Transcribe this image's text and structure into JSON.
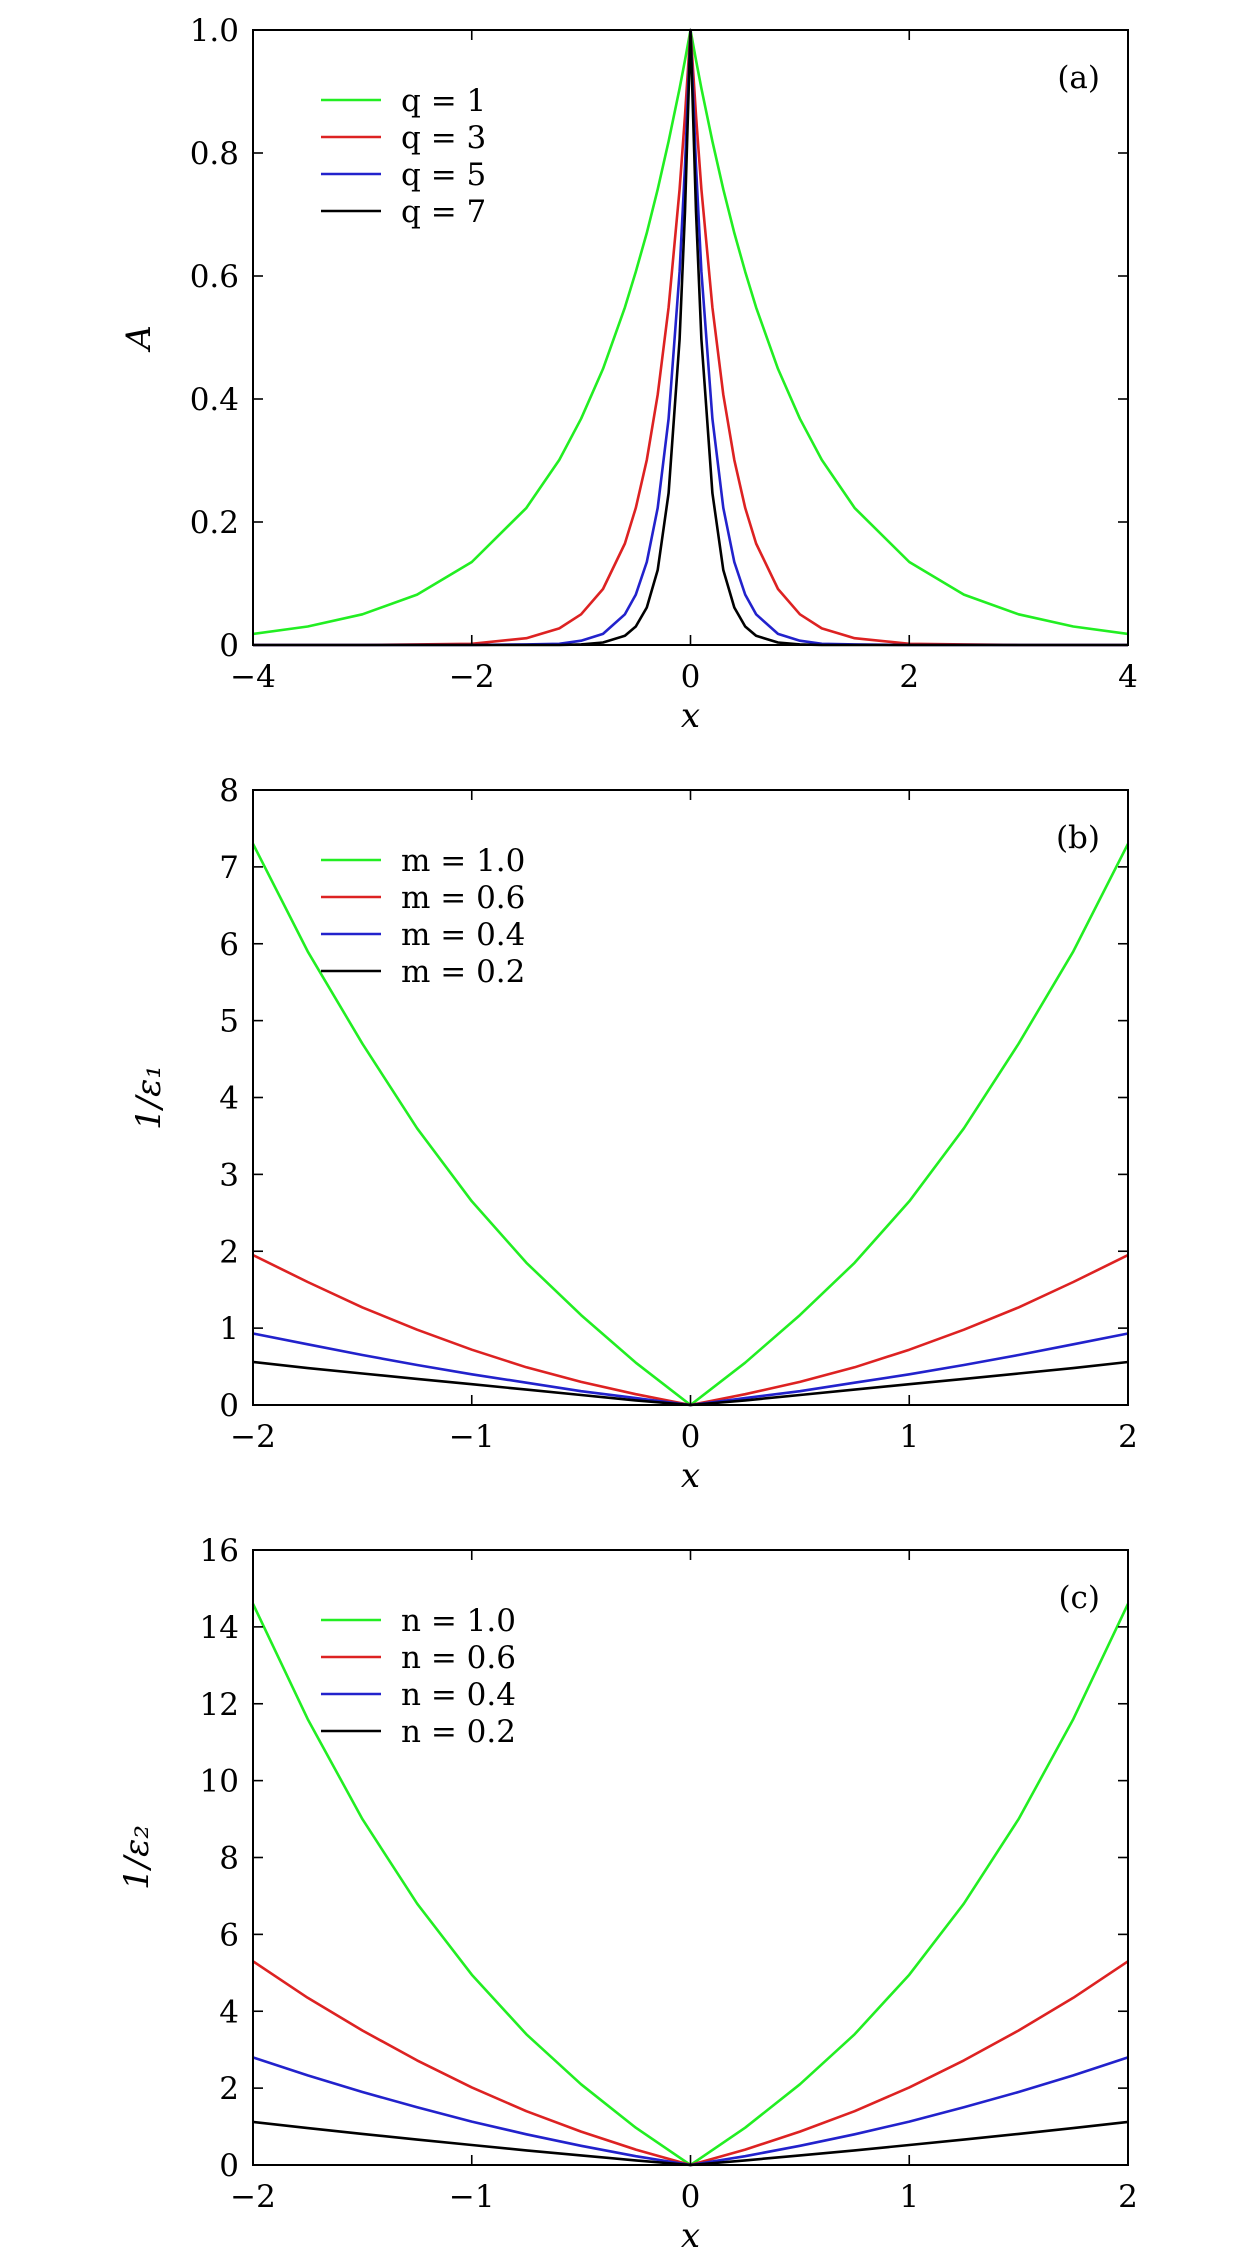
{
  "chart_data": [
    {
      "type": "line",
      "panel_label": "(a)",
      "xlabel": "x",
      "ylabel": "A",
      "xlim": [
        -4,
        4
      ],
      "ylim": [
        0,
        1.0
      ],
      "xticks": [
        -4,
        -2,
        0,
        2,
        4
      ],
      "xtick_labels": [
        "−4",
        "−2",
        "0",
        "2",
        "4"
      ],
      "yticks": [
        0,
        0.2,
        0.4,
        0.6,
        0.8,
        1.0
      ],
      "ytick_labels": [
        "0",
        "0.2",
        "0.4",
        "0.6",
        "0.8",
        "1.0"
      ],
      "legend_position": "top-left",
      "x": [
        -4,
        -3.5,
        -3,
        -2.5,
        -2,
        -1.5,
        -1.2,
        -1,
        -0.8,
        -0.6,
        -0.5,
        -0.4,
        -0.3,
        -0.2,
        -0.1,
        -0.05,
        0,
        0.05,
        0.1,
        0.2,
        0.3,
        0.4,
        0.5,
        0.6,
        0.8,
        1,
        1.2,
        1.5,
        2,
        2.5,
        3,
        3.5,
        4
      ],
      "series": [
        {
          "name": "q = 1",
          "color": "#22ee22",
          "values": [
            0.018,
            0.03,
            0.05,
            0.082,
            0.135,
            0.223,
            0.301,
            0.368,
            0.449,
            0.549,
            0.607,
            0.67,
            0.741,
            0.819,
            0.905,
            0.951,
            1.0,
            0.951,
            0.905,
            0.819,
            0.741,
            0.67,
            0.607,
            0.549,
            0.449,
            0.368,
            0.301,
            0.223,
            0.135,
            0.082,
            0.05,
            0.03,
            0.018
          ]
        },
        {
          "name": "q = 3",
          "color": "#dd2222",
          "values": [
            0.0,
            0.0,
            0.0,
            0.001,
            0.002,
            0.011,
            0.027,
            0.05,
            0.091,
            0.165,
            0.223,
            0.301,
            0.407,
            0.549,
            0.741,
            0.861,
            1.0,
            0.861,
            0.741,
            0.549,
            0.407,
            0.301,
            0.223,
            0.165,
            0.091,
            0.05,
            0.027,
            0.011,
            0.002,
            0.001,
            0.0,
            0.0,
            0.0
          ]
        },
        {
          "name": "q = 5",
          "color": "#2222cc",
          "values": [
            0.0,
            0.0,
            0.0,
            0.0,
            0.0,
            0.001,
            0.002,
            0.007,
            0.018,
            0.05,
            0.082,
            0.135,
            0.223,
            0.368,
            0.607,
            0.779,
            1.0,
            0.779,
            0.607,
            0.368,
            0.223,
            0.135,
            0.082,
            0.05,
            0.018,
            0.007,
            0.002,
            0.001,
            0.0,
            0.0,
            0.0,
            0.0,
            0.0
          ]
        },
        {
          "name": "q = 7",
          "color": "#000000",
          "values": [
            0.0,
            0.0,
            0.0,
            0.0,
            0.0,
            0.0,
            0.0,
            0.001,
            0.004,
            0.015,
            0.03,
            0.061,
            0.122,
            0.247,
            0.497,
            0.705,
            1.0,
            0.705,
            0.497,
            0.247,
            0.122,
            0.061,
            0.03,
            0.015,
            0.004,
            0.001,
            0.0,
            0.0,
            0.0,
            0.0,
            0.0,
            0.0,
            0.0
          ]
        }
      ]
    },
    {
      "type": "line",
      "panel_label": "(b)",
      "xlabel": "x",
      "ylabel": "1/ε₁",
      "xlim": [
        -2,
        2
      ],
      "ylim": [
        0,
        8
      ],
      "xticks": [
        -2,
        -1,
        0,
        1,
        2
      ],
      "xtick_labels": [
        "−2",
        "−1",
        "0",
        "1",
        "2"
      ],
      "yticks": [
        0,
        1,
        2,
        3,
        4,
        5,
        6,
        7,
        8
      ],
      "ytick_labels": [
        "0",
        "1",
        "2",
        "3",
        "4",
        "5",
        "6",
        "7",
        "8"
      ],
      "legend_position": "top-left",
      "x": [
        -2,
        -1.75,
        -1.5,
        -1.25,
        -1,
        -0.75,
        -0.5,
        -0.25,
        0,
        0.25,
        0.5,
        0.75,
        1,
        1.25,
        1.5,
        1.75,
        2
      ],
      "series": [
        {
          "name": "m = 1.0",
          "color": "#22ee22",
          "values": [
            7.3,
            5.9,
            4.7,
            3.6,
            2.65,
            1.85,
            1.17,
            0.55,
            0.0,
            0.55,
            1.17,
            1.85,
            2.65,
            3.6,
            4.7,
            5.9,
            7.3
          ]
        },
        {
          "name": "m = 0.6",
          "color": "#dd2222",
          "values": [
            1.95,
            1.6,
            1.27,
            0.98,
            0.72,
            0.49,
            0.3,
            0.14,
            0.0,
            0.14,
            0.3,
            0.49,
            0.72,
            0.98,
            1.27,
            1.6,
            1.95
          ]
        },
        {
          "name": "m = 0.4",
          "color": "#2222cc",
          "values": [
            0.93,
            0.79,
            0.65,
            0.52,
            0.4,
            0.29,
            0.18,
            0.09,
            0.0,
            0.09,
            0.18,
            0.29,
            0.4,
            0.52,
            0.65,
            0.79,
            0.93
          ]
        },
        {
          "name": "m = 0.2",
          "color": "#000000",
          "values": [
            0.56,
            0.48,
            0.41,
            0.34,
            0.27,
            0.2,
            0.13,
            0.06,
            0.0,
            0.06,
            0.13,
            0.2,
            0.27,
            0.34,
            0.41,
            0.48,
            0.56
          ]
        }
      ]
    },
    {
      "type": "line",
      "panel_label": "(c)",
      "xlabel": "x",
      "ylabel": "1/ε₂",
      "xlim": [
        -2,
        2
      ],
      "ylim": [
        0,
        16
      ],
      "xticks": [
        -2,
        -1,
        0,
        1,
        2
      ],
      "xtick_labels": [
        "−2",
        "−1",
        "0",
        "1",
        "2"
      ],
      "yticks": [
        0,
        2,
        4,
        6,
        8,
        10,
        12,
        14,
        16
      ],
      "ytick_labels": [
        "0",
        "2",
        "4",
        "6",
        "8",
        "10",
        "12",
        "14",
        "16"
      ],
      "legend_position": "top-left",
      "x": [
        -2,
        -1.75,
        -1.5,
        -1.25,
        -1,
        -0.75,
        -0.5,
        -0.25,
        0,
        0.25,
        0.5,
        0.75,
        1,
        1.25,
        1.5,
        1.75,
        2
      ],
      "series": [
        {
          "name": "n = 1.0",
          "color": "#22ee22",
          "values": [
            14.6,
            11.6,
            9.0,
            6.8,
            4.95,
            3.4,
            2.1,
            0.97,
            0.0,
            0.97,
            2.1,
            3.4,
            4.95,
            6.8,
            9.0,
            11.6,
            14.6
          ]
        },
        {
          "name": "n = 0.6",
          "color": "#dd2222",
          "values": [
            5.3,
            4.35,
            3.5,
            2.72,
            2.02,
            1.4,
            0.87,
            0.4,
            0.0,
            0.4,
            0.87,
            1.4,
            2.02,
            2.72,
            3.5,
            4.35,
            5.3
          ]
        },
        {
          "name": "n = 0.4",
          "color": "#2222cc",
          "values": [
            2.8,
            2.33,
            1.9,
            1.5,
            1.13,
            0.8,
            0.5,
            0.23,
            0.0,
            0.23,
            0.5,
            0.8,
            1.13,
            1.5,
            1.9,
            2.33,
            2.8
          ]
        },
        {
          "name": "n = 0.2",
          "color": "#000000",
          "values": [
            1.12,
            0.96,
            0.81,
            0.66,
            0.52,
            0.38,
            0.25,
            0.12,
            0.0,
            0.12,
            0.25,
            0.38,
            0.52,
            0.66,
            0.81,
            0.96,
            1.12
          ]
        }
      ]
    }
  ]
}
